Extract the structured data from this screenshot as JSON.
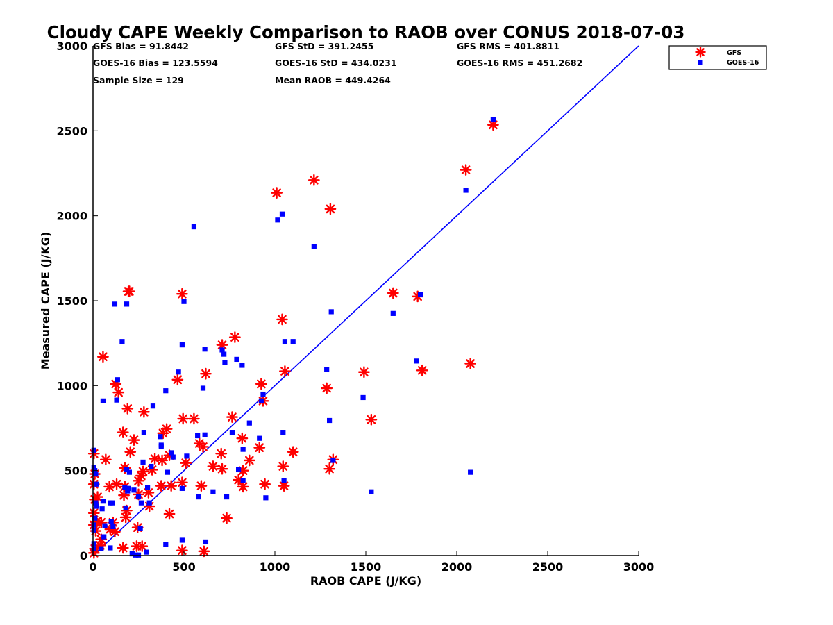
{
  "chart_data": {
    "type": "scatter",
    "title": "Cloudy CAPE Weekly Comparison to RAOB over CONUS 2018-07-03",
    "xlabel": "RAOB CAPE (J/KG)",
    "ylabel": "Measured CAPE (J/KG)",
    "xlim": [
      0,
      3000
    ],
    "ylim": [
      0,
      3000
    ],
    "xticks": [
      0,
      500,
      1000,
      1500,
      2000,
      2500,
      3000
    ],
    "yticks": [
      0,
      500,
      1000,
      1500,
      2000,
      2500,
      3000
    ],
    "grid": false,
    "legend_position": "top-right",
    "stats": [
      "GFS Bias = 91.8442",
      "GFS StD = 391.2455",
      "GFS RMS = 401.8811",
      "GOES-16 Bias = 123.5594",
      "GOES-16 StD = 434.0231",
      "GOES-16 RMS = 451.2682",
      "Sample Size = 129",
      "Mean RAOB = 449.4264"
    ],
    "one_to_one_line": {
      "x": [
        0,
        3000
      ],
      "y": [
        0,
        3000
      ],
      "color": "#0000ff"
    },
    "series": [
      {
        "name": "GFS",
        "marker": "asterisk",
        "color": "#ff0000",
        "points": [
          [
            2200,
            2535
          ],
          [
            2050,
            2270
          ],
          [
            1215,
            2210
          ],
          [
            1010,
            2135
          ],
          [
            1305,
            2040
          ],
          [
            2075,
            1130
          ],
          [
            1810,
            1090
          ],
          [
            1785,
            1525
          ],
          [
            1650,
            1545
          ],
          [
            1530,
            800
          ],
          [
            1490,
            1080
          ],
          [
            1320,
            565
          ],
          [
            1300,
            510
          ],
          [
            1285,
            985
          ],
          [
            1100,
            610
          ],
          [
            1055,
            1085
          ],
          [
            1050,
            410
          ],
          [
            1045,
            525
          ],
          [
            1040,
            1390
          ],
          [
            945,
            420
          ],
          [
            935,
            910
          ],
          [
            925,
            1010
          ],
          [
            915,
            635
          ],
          [
            860,
            560
          ],
          [
            825,
            500
          ],
          [
            825,
            405
          ],
          [
            820,
            690
          ],
          [
            800,
            445
          ],
          [
            780,
            1285
          ],
          [
            765,
            815
          ],
          [
            735,
            220
          ],
          [
            710,
            1240
          ],
          [
            710,
            510
          ],
          [
            705,
            600
          ],
          [
            660,
            525
          ],
          [
            620,
            1070
          ],
          [
            610,
            25
          ],
          [
            605,
            640
          ],
          [
            595,
            410
          ],
          [
            585,
            660
          ],
          [
            555,
            805
          ],
          [
            510,
            545
          ],
          [
            495,
            805
          ],
          [
            490,
            430
          ],
          [
            490,
            30
          ],
          [
            490,
            1540
          ],
          [
            465,
            1035
          ],
          [
            430,
            410
          ],
          [
            420,
            245
          ],
          [
            420,
            590
          ],
          [
            405,
            745
          ],
          [
            385,
            720
          ],
          [
            380,
            560
          ],
          [
            375,
            410
          ],
          [
            340,
            570
          ],
          [
            325,
            505
          ],
          [
            310,
            290
          ],
          [
            305,
            370
          ],
          [
            280,
            845
          ],
          [
            275,
            495
          ],
          [
            270,
            55
          ],
          [
            265,
            470
          ],
          [
            250,
            440
          ],
          [
            250,
            360
          ],
          [
            245,
            165
          ],
          [
            240,
            55
          ],
          [
            225,
            680
          ],
          [
            205,
            610
          ],
          [
            200,
            1555
          ],
          [
            195,
            1555
          ],
          [
            190,
            865
          ],
          [
            185,
            265
          ],
          [
            180,
            225
          ],
          [
            175,
            515
          ],
          [
            175,
            405
          ],
          [
            170,
            355
          ],
          [
            165,
            725
          ],
          [
            165,
            45
          ],
          [
            140,
            960
          ],
          [
            130,
            420
          ],
          [
            125,
            1010
          ],
          [
            120,
            140
          ],
          [
            110,
            195
          ],
          [
            95,
            155
          ],
          [
            90,
            405
          ],
          [
            70,
            565
          ],
          [
            55,
            1170
          ],
          [
            45,
            95
          ],
          [
            45,
            195
          ],
          [
            40,
            60
          ],
          [
            25,
            345
          ],
          [
            20,
            200
          ],
          [
            15,
            145
          ],
          [
            10,
            330
          ],
          [
            10,
            480
          ],
          [
            5,
            600
          ],
          [
            5,
            420
          ],
          [
            5,
            250
          ],
          [
            5,
            180
          ],
          [
            5,
            15
          ],
          [
            10,
            40
          ]
        ]
      },
      {
        "name": "GOES-16",
        "marker": "square",
        "color": "#0000ff",
        "points": [
          [
            2200,
            2565
          ],
          [
            2050,
            2150
          ],
          [
            1215,
            1820
          ],
          [
            1040,
            2010
          ],
          [
            1015,
            1975
          ],
          [
            555,
            1935
          ],
          [
            1780,
            1145
          ],
          [
            1800,
            1535
          ],
          [
            1650,
            1425
          ],
          [
            1530,
            375
          ],
          [
            2075,
            490
          ],
          [
            1485,
            930
          ],
          [
            1310,
            1435
          ],
          [
            1300,
            795
          ],
          [
            1285,
            1095
          ],
          [
            1320,
            560
          ],
          [
            1100,
            1260
          ],
          [
            1055,
            1260
          ],
          [
            1050,
            440
          ],
          [
            1045,
            725
          ],
          [
            950,
            340
          ],
          [
            935,
            950
          ],
          [
            925,
            910
          ],
          [
            915,
            690
          ],
          [
            860,
            780
          ],
          [
            825,
            440
          ],
          [
            825,
            625
          ],
          [
            820,
            1120
          ],
          [
            800,
            505
          ],
          [
            790,
            1155
          ],
          [
            765,
            725
          ],
          [
            735,
            345
          ],
          [
            725,
            1135
          ],
          [
            720,
            1185
          ],
          [
            710,
            1210
          ],
          [
            660,
            375
          ],
          [
            620,
            80
          ],
          [
            615,
            1215
          ],
          [
            615,
            710
          ],
          [
            605,
            985
          ],
          [
            580,
            345
          ],
          [
            575,
            705
          ],
          [
            515,
            585
          ],
          [
            500,
            1495
          ],
          [
            490,
            1240
          ],
          [
            490,
            90
          ],
          [
            490,
            395
          ],
          [
            470,
            1080
          ],
          [
            440,
            580
          ],
          [
            430,
            605
          ],
          [
            410,
            490
          ],
          [
            400,
            970
          ],
          [
            400,
            65
          ],
          [
            375,
            650
          ],
          [
            375,
            640
          ],
          [
            370,
            700
          ],
          [
            330,
            880
          ],
          [
            320,
            525
          ],
          [
            310,
            310
          ],
          [
            300,
            400
          ],
          [
            295,
            20
          ],
          [
            280,
            725
          ],
          [
            275,
            550
          ],
          [
            265,
            310
          ],
          [
            260,
            160
          ],
          [
            250,
            345
          ],
          [
            250,
            3
          ],
          [
            235,
            3
          ],
          [
            225,
            385
          ],
          [
            215,
            10
          ],
          [
            200,
            490
          ],
          [
            195,
            395
          ],
          [
            190,
            380
          ],
          [
            185,
            1480
          ],
          [
            185,
            1480
          ],
          [
            185,
            505
          ],
          [
            180,
            280
          ],
          [
            175,
            400
          ],
          [
            160,
            1260
          ],
          [
            135,
            1035
          ],
          [
            130,
            915
          ],
          [
            120,
            1480
          ],
          [
            110,
            170
          ],
          [
            105,
            310
          ],
          [
            100,
            200
          ],
          [
            95,
            310
          ],
          [
            95,
            45
          ],
          [
            65,
            175
          ],
          [
            60,
            110
          ],
          [
            55,
            910
          ],
          [
            55,
            320
          ],
          [
            50,
            275
          ],
          [
            45,
            40
          ],
          [
            20,
            420
          ],
          [
            20,
            290
          ],
          [
            15,
            310
          ],
          [
            15,
            480
          ],
          [
            10,
            500
          ],
          [
            10,
            220
          ],
          [
            5,
            620
          ],
          [
            5,
            520
          ],
          [
            5,
            180
          ],
          [
            5,
            150
          ],
          [
            5,
            70
          ],
          [
            5,
            40
          ]
        ]
      }
    ]
  }
}
